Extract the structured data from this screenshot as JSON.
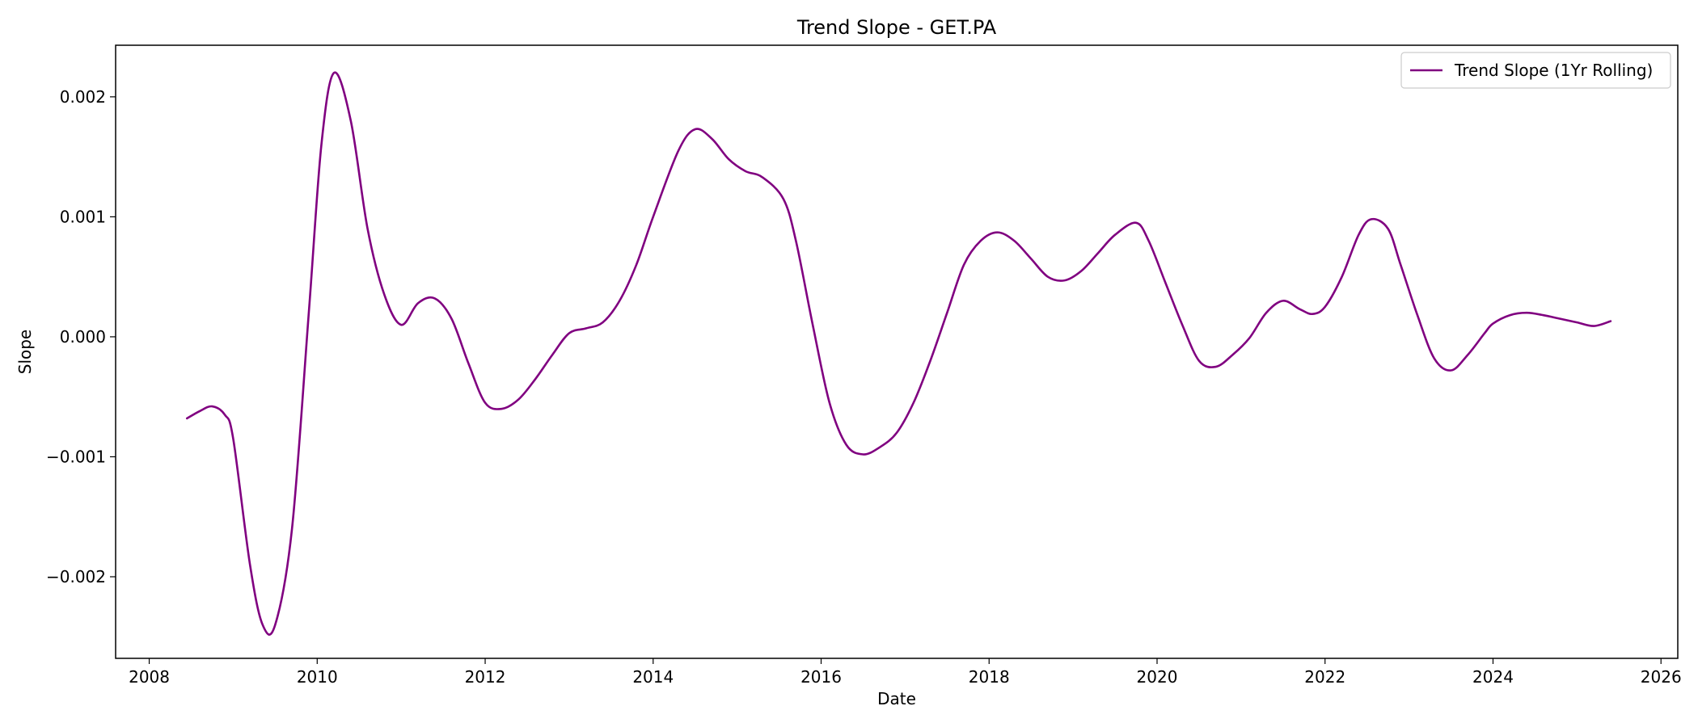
{
  "chart_data": {
    "type": "line",
    "title": "Trend Slope - GET.PA",
    "xlabel": "Date",
    "ylabel": "Slope",
    "xlim": [
      2007.6,
      2026.2
    ],
    "ylim": [
      -0.00268,
      0.00243
    ],
    "x_ticks": [
      2008,
      2010,
      2012,
      2014,
      2016,
      2018,
      2020,
      2022,
      2024,
      2026
    ],
    "x_tick_labels": [
      "2008",
      "2010",
      "2012",
      "2014",
      "2016",
      "2018",
      "2020",
      "2022",
      "2024",
      "2026"
    ],
    "y_ticks": [
      -0.002,
      -0.001,
      0.0,
      0.001,
      0.002
    ],
    "y_tick_labels": [
      "−0.002",
      "−0.001",
      "0.000",
      "0.001",
      "0.002"
    ],
    "grid": false,
    "legend_position": "top-right",
    "colors": {
      "series": "#800080",
      "axes": "#000000",
      "legend_border": "#cccccc"
    },
    "series": [
      {
        "name": "Trend Slope (1Yr Rolling)",
        "x": [
          2008.45,
          2008.6,
          2008.75,
          2008.9,
          2009.0,
          2009.2,
          2009.35,
          2009.5,
          2009.7,
          2009.9,
          2010.05,
          2010.2,
          2010.4,
          2010.6,
          2010.8,
          2011.0,
          2011.2,
          2011.4,
          2011.6,
          2011.8,
          2012.0,
          2012.2,
          2012.4,
          2012.6,
          2012.8,
          2013.0,
          2013.2,
          2013.4,
          2013.6,
          2013.8,
          2014.0,
          2014.3,
          2014.5,
          2014.7,
          2014.9,
          2015.1,
          2015.3,
          2015.55,
          2015.7,
          2015.9,
          2016.1,
          2016.3,
          2016.5,
          2016.7,
          2016.9,
          2017.1,
          2017.3,
          2017.5,
          2017.7,
          2017.9,
          2018.1,
          2018.3,
          2018.5,
          2018.7,
          2018.9,
          2019.1,
          2019.3,
          2019.5,
          2019.75,
          2019.9,
          2020.1,
          2020.3,
          2020.5,
          2020.7,
          2020.9,
          2021.1,
          2021.3,
          2021.5,
          2021.7,
          2021.85,
          2022.0,
          2022.2,
          2022.4,
          2022.55,
          2022.75,
          2022.9,
          2023.1,
          2023.3,
          2023.5,
          2023.7,
          2023.9,
          2024.0,
          2024.2,
          2024.4,
          2024.6,
          2024.8,
          2025.0,
          2025.2,
          2025.4
        ],
        "y": [
          -0.00068,
          -0.00062,
          -0.00058,
          -0.00065,
          -0.00085,
          -0.0019,
          -0.0024,
          -0.0024,
          -0.0016,
          0.0002,
          0.0016,
          0.0022,
          0.0018,
          0.0009,
          0.00035,
          0.0001,
          0.00028,
          0.00032,
          0.00015,
          -0.00022,
          -0.00055,
          -0.0006,
          -0.00052,
          -0.00035,
          -0.00015,
          3e-05,
          7e-05,
          0.00012,
          0.0003,
          0.0006,
          0.001,
          0.00155,
          0.00173,
          0.00165,
          0.00148,
          0.00138,
          0.00133,
          0.00115,
          0.0008,
          0.0001,
          -0.00055,
          -0.0009,
          -0.00098,
          -0.00092,
          -0.0008,
          -0.00055,
          -0.0002,
          0.0002,
          0.0006,
          0.0008,
          0.00087,
          0.0008,
          0.00065,
          0.0005,
          0.00047,
          0.00055,
          0.0007,
          0.00085,
          0.00095,
          0.0008,
          0.00045,
          0.0001,
          -0.0002,
          -0.00025,
          -0.00015,
          -1e-05,
          0.0002,
          0.0003,
          0.00023,
          0.00019,
          0.00025,
          0.0005,
          0.00085,
          0.00098,
          0.0009,
          0.0006,
          0.00018,
          -0.00018,
          -0.00028,
          -0.00015,
          3e-05,
          0.00011,
          0.00018,
          0.0002,
          0.00018,
          0.00015,
          0.00012,
          9e-05,
          0.00013
        ]
      }
    ]
  }
}
